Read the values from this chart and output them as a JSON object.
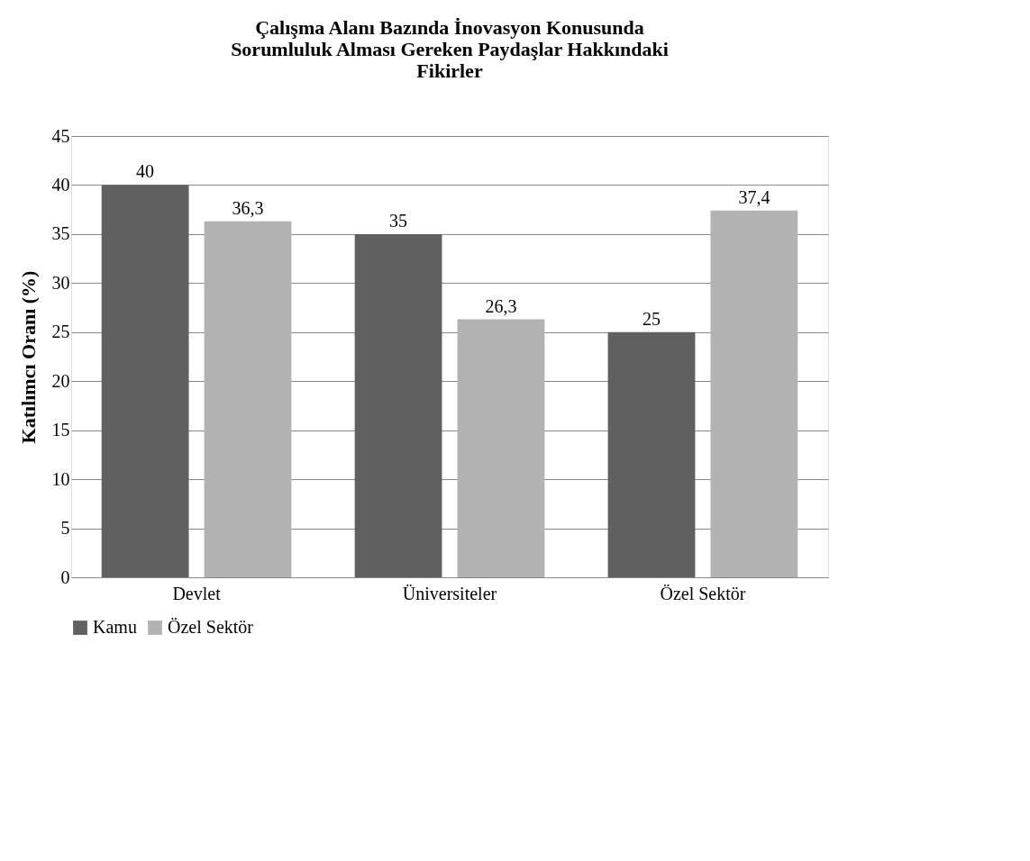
{
  "chart_data": {
    "type": "bar",
    "title": "Çalışma Alanı Bazında İnovasyon Konusunda Sorumluluk Alması Gereken Paydaşlar Hakkındaki Fikirler",
    "ylabel": "Katılımcı Oranı (%)",
    "categories": [
      "Devlet",
      "Üniversiteler",
      "Özel Sektör"
    ],
    "series": [
      {
        "name": "Kamu",
        "color": "#606060",
        "values": [
          40,
          35,
          25
        ],
        "value_labels": [
          "40",
          "35",
          "25"
        ]
      },
      {
        "name": "Özel Sektör",
        "color": "#b2b2b2",
        "values": [
          36.3,
          26.3,
          37.4
        ],
        "value_labels": [
          "36,3",
          "26,3",
          "37,4"
        ]
      }
    ],
    "ylim": [
      0,
      45
    ],
    "yticks": [
      0,
      5,
      10,
      15,
      20,
      25,
      30,
      35,
      40,
      45
    ],
    "grid": "y",
    "legend": "bottom"
  }
}
